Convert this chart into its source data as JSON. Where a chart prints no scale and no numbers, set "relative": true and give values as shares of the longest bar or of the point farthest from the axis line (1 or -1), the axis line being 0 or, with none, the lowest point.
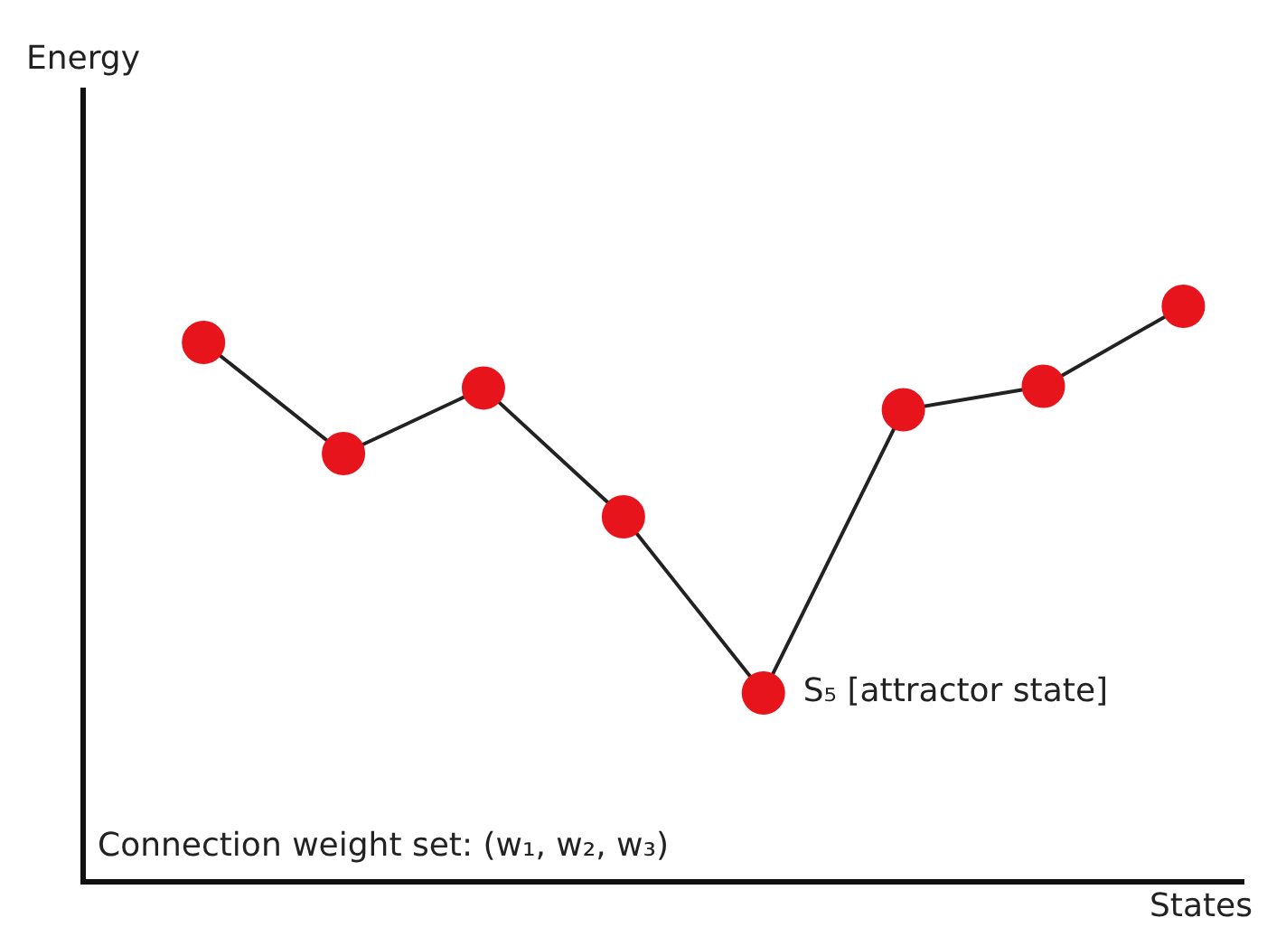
{
  "chart_data": {
    "type": "line",
    "xlabel": "States",
    "relative": true,
    "categories": [
      null,
      null,
      null,
      null,
      null,
      null,
      null,
      null
    ],
    "series": [
      {
        "color": "#222222",
        "colors": [
          "#e8141c",
          "#e8141c",
          "#e8141c",
          "#e8141c",
          "#e8141c",
          "#e8141c",
          "#e8141c",
          "#e8141c"
        ],
        "values": [
          0.937,
          0.744,
          0.858,
          0.634,
          0.328,
          0.82,
          0.861,
          1.0
        ]
      }
    ],
    "marker": "circle",
    "line_style": "solid",
    "grid": false,
    "legend": false,
    "annotations": [
      "S₅ [attractor state]",
      "Connection weight set: (w₁, w₂, w₃)",
      "Energy"
    ]
  }
}
